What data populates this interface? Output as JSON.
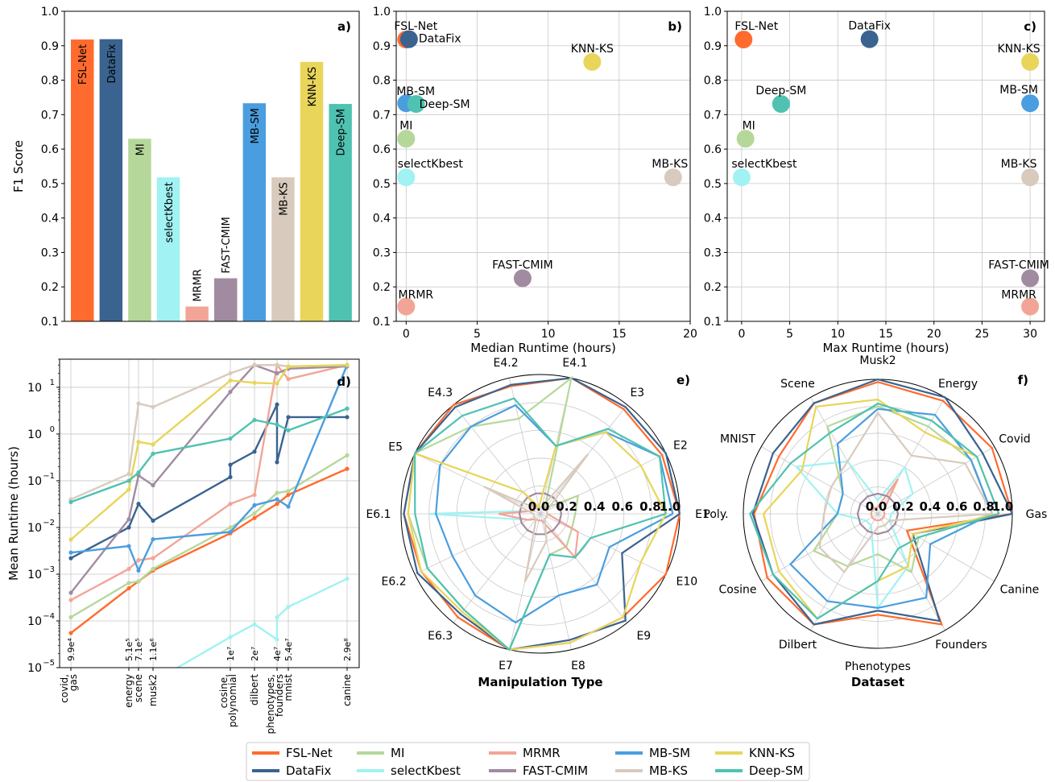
{
  "methods": [
    "FSL-Net",
    "DataFix",
    "MI",
    "selectKbest",
    "MRMR",
    "FAST-CMIM",
    "MB-SM",
    "MB-KS",
    "KNN-KS",
    "Deep-SM"
  ],
  "colors": {
    "FSL-Net": "#ff6b2e",
    "DataFix": "#3a6390",
    "MI": "#b5d89a",
    "selectKbest": "#a1f2f2",
    "MRMR": "#f2a596",
    "FAST-CMIM": "#a18ba0",
    "MB-SM": "#4a9ee0",
    "MB-KS": "#d8cbbd",
    "KNN-KS": "#e8d55a",
    "Deep-SM": "#4fc2b2"
  },
  "panels": {
    "a": "a)",
    "b": "b)",
    "c": "c)",
    "d": "d)",
    "e": "e)",
    "f": "f)"
  },
  "chart_data": [
    {
      "id": "a",
      "type": "bar",
      "categories": [
        "FSL-Net",
        "DataFix",
        "MI",
        "selectKbest",
        "MRMR",
        "FAST-CMIM",
        "MB-SM",
        "MB-KS",
        "KNN-KS",
        "Deep-SM"
      ],
      "values": [
        0.918,
        0.919,
        0.63,
        0.518,
        0.143,
        0.225,
        0.733,
        0.518,
        0.853,
        0.731
      ],
      "ylabel": "F1 Score",
      "ylim": [
        0.1,
        1.0
      ],
      "yticks": [
        "0.1",
        "0.2",
        "0.3",
        "0.4",
        "0.5",
        "0.6",
        "0.7",
        "0.8",
        "0.9",
        "1.0"
      ]
    },
    {
      "id": "b",
      "type": "scatter",
      "xlabel": "Median Runtime (hours)",
      "xlim": [
        -0.7,
        20
      ],
      "ylim": [
        0.1,
        1.0
      ],
      "xticks": [
        "0",
        "5",
        "10",
        "15",
        "20"
      ],
      "yticks": [
        "0.1",
        "0.2",
        "0.3",
        "0.4",
        "0.5",
        "0.6",
        "0.7",
        "0.8",
        "0.9",
        "1.0"
      ],
      "points": [
        {
          "name": "FSL-Net",
          "x": 0.0,
          "y": 0.918
        },
        {
          "name": "DataFix",
          "x": 0.2,
          "y": 0.919
        },
        {
          "name": "MI",
          "x": 0.0,
          "y": 0.63
        },
        {
          "name": "selectKbest",
          "x": 0.0,
          "y": 0.518
        },
        {
          "name": "MRMR",
          "x": 0.0,
          "y": 0.143
        },
        {
          "name": "FAST-CMIM",
          "x": 8.2,
          "y": 0.225
        },
        {
          "name": "MB-SM",
          "x": 0.0,
          "y": 0.733
        },
        {
          "name": "MB-KS",
          "x": 18.8,
          "y": 0.518
        },
        {
          "name": "KNN-KS",
          "x": 13.1,
          "y": 0.853
        },
        {
          "name": "Deep-SM",
          "x": 0.7,
          "y": 0.731
        }
      ]
    },
    {
      "id": "c",
      "type": "scatter",
      "xlabel": "Max Runtime (hours)",
      "xlim": [
        -1.5,
        31.5
      ],
      "ylim": [
        0.1,
        1.0
      ],
      "xticks": [
        "0",
        "5",
        "10",
        "15",
        "20",
        "25",
        "30"
      ],
      "yticks": [
        "0.1",
        "0.2",
        "0.3",
        "0.4",
        "0.5",
        "0.6",
        "0.7",
        "0.8",
        "0.9",
        "1.0"
      ],
      "points": [
        {
          "name": "FSL-Net",
          "x": 0.2,
          "y": 0.918
        },
        {
          "name": "DataFix",
          "x": 13.3,
          "y": 0.919
        },
        {
          "name": "MI",
          "x": 0.4,
          "y": 0.63
        },
        {
          "name": "selectKbest",
          "x": 0.0,
          "y": 0.518
        },
        {
          "name": "MRMR",
          "x": 30,
          "y": 0.143
        },
        {
          "name": "FAST-CMIM",
          "x": 30,
          "y": 0.225
        },
        {
          "name": "MB-SM",
          "x": 30,
          "y": 0.733
        },
        {
          "name": "MB-KS",
          "x": 30,
          "y": 0.518
        },
        {
          "name": "KNN-KS",
          "x": 30,
          "y": 0.853
        },
        {
          "name": "Deep-SM",
          "x": 4.1,
          "y": 0.731
        }
      ]
    },
    {
      "id": "d",
      "type": "line",
      "scale": "log",
      "ylabel": "Mean Runtime (hours)",
      "ylim": [
        1e-05,
        40
      ],
      "yticks": [
        {
          "v": 1e-05,
          "label": "10",
          "exp": "−5"
        },
        {
          "v": 0.0001,
          "label": "10",
          "exp": "−4"
        },
        {
          "v": 0.001,
          "label": "10",
          "exp": "−3"
        },
        {
          "v": 0.01,
          "label": "10",
          "exp": "−2"
        },
        {
          "v": 0.1,
          "label": "10",
          "exp": "−1"
        },
        {
          "v": 1,
          "label": "10",
          "exp": "0"
        },
        {
          "v": 10,
          "label": "10",
          "exp": "1"
        }
      ],
      "datasets": [
        {
          "name": "covid,\ngas",
          "size": "9.9e⁴"
        },
        {
          "name": "energy",
          "size": "5.1e⁵"
        },
        {
          "name": "scene",
          "size": "7.1e⁵"
        },
        {
          "name": "musk2",
          "size": "1.1e⁶"
        },
        {
          "name": "cosine,\npolynomial",
          "size": "1e⁷"
        },
        {
          "name": "dilbert",
          "size": "2e⁷"
        },
        {
          "name": "phenotypes,\nfounders",
          "size": "4e⁷"
        },
        {
          "name": "mnist",
          "size": "5.4e⁷"
        },
        {
          "name": "canine",
          "size": "2.9e⁸"
        }
      ],
      "series": [
        {
          "name": "FSL-Net",
          "points": [
            [
              1,
              5.5e-05
            ],
            [
              2,
              0.0005
            ],
            [
              3,
              0.0007
            ],
            [
              4,
              0.0012
            ],
            [
              5,
              0.0075
            ],
            [
              6,
              0.016
            ],
            [
              7,
              0.032
            ],
            [
              8,
              0.05
            ],
            [
              9,
              0.18
            ]
          ]
        },
        {
          "name": "DataFix",
          "points": [
            [
              1,
              0.0022
            ],
            [
              2,
              0.01
            ],
            [
              3,
              0.032
            ],
            [
              4,
              0.014
            ],
            [
              5,
              0.12
            ],
            [
              5,
              0.22
            ],
            [
              6,
              0.42
            ],
            [
              7,
              4.3
            ],
            [
              7,
              0.25
            ],
            [
              8,
              2.3
            ],
            [
              9,
              2.3
            ]
          ]
        },
        {
          "name": "MI",
          "points": [
            [
              1,
              0.00012
            ],
            [
              2,
              0.00065
            ],
            [
              3,
              0.0007
            ],
            [
              4,
              0.0013
            ],
            [
              5,
              0.01
            ],
            [
              6,
              0.02
            ],
            [
              7,
              0.055
            ],
            [
              8,
              0.06
            ],
            [
              9,
              0.35
            ]
          ]
        },
        {
          "name": "selectKbest",
          "points": [
            [
              4,
              5e-06
            ],
            [
              5,
              4.5e-05
            ],
            [
              6,
              8.5e-05
            ],
            [
              7,
              4e-05
            ],
            [
              7,
              0.00012
            ],
            [
              8,
              0.0002
            ],
            [
              9,
              0.0008
            ]
          ]
        },
        {
          "name": "MRMR",
          "points": [
            [
              1,
              0.00028
            ],
            [
              2,
              0.0013
            ],
            [
              3,
              0.002
            ],
            [
              4,
              0.0022
            ],
            [
              5,
              0.032
            ],
            [
              6,
              0.05
            ],
            [
              7,
              30
            ],
            [
              8,
              15
            ],
            [
              9,
              30
            ]
          ]
        },
        {
          "name": "FAST-CMIM",
          "points": [
            [
              1,
              0.0004
            ],
            [
              2,
              0.015
            ],
            [
              3,
              0.13
            ],
            [
              4,
              0.08
            ],
            [
              5,
              8
            ],
            [
              6,
              30
            ],
            [
              7,
              20
            ],
            [
              8,
              25
            ],
            [
              9,
              28
            ]
          ]
        },
        {
          "name": "MB-SM",
          "points": [
            [
              1,
              0.0029
            ],
            [
              2,
              0.004
            ],
            [
              3,
              0.0012
            ],
            [
              4,
              0.0056
            ],
            [
              5,
              0.008
            ],
            [
              6,
              0.03
            ],
            [
              7,
              0.04
            ],
            [
              8,
              0.028
            ],
            [
              9,
              30
            ]
          ]
        },
        {
          "name": "MB-KS",
          "points": [
            [
              1,
              0.04
            ],
            [
              2,
              0.14
            ],
            [
              3,
              4.5
            ],
            [
              4,
              3.8
            ],
            [
              5,
              20
            ],
            [
              6,
              30
            ],
            [
              7,
              30
            ],
            [
              8,
              28
            ],
            [
              9,
              30
            ]
          ]
        },
        {
          "name": "KNN-KS",
          "points": [
            [
              1,
              0.0055
            ],
            [
              2,
              0.065
            ],
            [
              3,
              0.68
            ],
            [
              4,
              0.6
            ],
            [
              5,
              14
            ],
            [
              6,
              12.5
            ],
            [
              7,
              12
            ],
            [
              8,
              28
            ],
            [
              9,
              30
            ]
          ]
        },
        {
          "name": "Deep-SM",
          "points": [
            [
              1,
              0.035
            ],
            [
              2,
              0.1
            ],
            [
              3,
              0.15
            ],
            [
              4,
              0.38
            ],
            [
              5,
              0.8
            ],
            [
              6,
              2
            ],
            [
              7,
              1.6
            ],
            [
              8,
              1.2
            ],
            [
              9,
              3.5
            ]
          ]
        }
      ]
    },
    {
      "id": "e",
      "type": "radar",
      "xlabel": "Manipulation Type",
      "axes": [
        "E1",
        "E2",
        "E3",
        "E4.1",
        "E4.2",
        "E4.3",
        "E5",
        "E6.1",
        "E6.2",
        "E6.3",
        "E7",
        "E8",
        "E9",
        "E10"
      ],
      "rlabels": [
        "0.0",
        "0.2",
        "0.4",
        "0.6",
        "0.8",
        "1.0"
      ],
      "series": [
        {
          "name": "FSL-Net",
          "values": [
            1.0,
            0.97,
            0.96,
            1.0,
            0.94,
            1.0,
            1.0,
            0.98,
            0.95,
            0.95,
            1.0,
            0.95,
            0.95,
            1.0
          ]
        },
        {
          "name": "DataFix",
          "values": [
            1.0,
            1.0,
            0.98,
            1.0,
            0.95,
            0.98,
            1.0,
            0.98,
            0.98,
            0.92,
            1.0,
            0.93,
            0.98,
            0.65
          ]
        },
        {
          "name": "MI",
          "values": [
            0.25,
            0.3,
            0.05,
            1.0,
            0.7,
            0.8,
            1.0,
            0.95,
            0.9,
            0.88,
            1.0,
            0.3,
            0.3,
            0.25
          ]
        },
        {
          "name": "selectKbest",
          "values": [
            0.05,
            0.05,
            0.05,
            0.05,
            0.05,
            0.1,
            0.05,
            0.8,
            0.1,
            0.05,
            0.05,
            0.05,
            0.05,
            0.05
          ]
        },
        {
          "name": "MRMR",
          "values": [
            0.05,
            0.05,
            0.05,
            0.05,
            0.05,
            0.1,
            0.05,
            0.3,
            0.1,
            0.05,
            0.05,
            0.05,
            0.4,
            0.3
          ]
        },
        {
          "name": "FAST-CMIM",
          "values": [
            0.15,
            0.15,
            0.15,
            0.15,
            0.15,
            0.15,
            0.15,
            0.15,
            0.15,
            0.15,
            0.15,
            0.15,
            0.15,
            0.15
          ]
        },
        {
          "name": "MB-SM",
          "values": [
            0.95,
            0.95,
            0.75,
            0.5,
            0.8,
            0.8,
            0.8,
            0.75,
            0.7,
            0.75,
            0.8,
            0.6,
            0.65,
            0.55
          ]
        },
        {
          "name": "MB-KS",
          "values": [
            0.05,
            0.05,
            0.55,
            0.05,
            0.05,
            0.05,
            0.45,
            0.05,
            0.05,
            0.05,
            0.5,
            0.2,
            0.05,
            0.05
          ]
        },
        {
          "name": "KNN-KS",
          "values": [
            0.9,
            0.8,
            0.75,
            0.5,
            0.05,
            0.2,
            1.0,
            0.95,
            0.95,
            0.9,
            1.0,
            0.95,
            0.95,
            0.8
          ]
        },
        {
          "name": "Deep-SM",
          "values": [
            0.9,
            0.95,
            0.78,
            0.5,
            0.85,
            0.9,
            1.0,
            0.9,
            0.9,
            0.88,
            1.0,
            0.3,
            0.4,
            0.4
          ]
        }
      ]
    },
    {
      "id": "f",
      "type": "radar",
      "xlabel": "Dataset",
      "axes": [
        "Gas",
        "Covid",
        "Energy",
        "Musk2",
        "Scene",
        "MNIST",
        "Poly.",
        "Cosine",
        "Dilbert",
        "Phenotypes",
        "Founders",
        "Canine"
      ],
      "rlabels": [
        "0.0",
        "0.2",
        "0.4",
        "0.6",
        "0.8",
        "1.0"
      ],
      "series": [
        {
          "name": "FSL-Net",
          "values": [
            1.0,
            0.98,
            0.97,
            0.98,
            0.95,
            0.85,
            0.92,
            0.95,
            0.95,
            0.75,
            0.95,
            0.25
          ]
        },
        {
          "name": "DataFix",
          "values": [
            1.0,
            0.9,
            1.0,
            1.0,
            0.95,
            0.9,
            0.93,
            0.9,
            0.95,
            0.72,
            0.92,
            0.3
          ]
        },
        {
          "name": "MI",
          "values": [
            0.85,
            0.8,
            0.75,
            0.8,
            0.75,
            0.3,
            0.3,
            0.55,
            0.45,
            0.3,
            0.5,
            0.35
          ]
        },
        {
          "name": "selectKbest",
          "values": [
            0.1,
            0.3,
            0.4,
            0.1,
            0.45,
            0.7,
            0.3,
            0.1,
            0.1,
            0.7,
            0.45,
            0.1
          ]
        },
        {
          "name": "MRMR",
          "values": [
            0.05,
            0.05,
            0.3,
            0.05,
            0.05,
            0.05,
            0.05,
            0.05,
            0.05,
            0.05,
            0.05,
            0.05
          ]
        },
        {
          "name": "FAST-CMIM",
          "values": [
            0.15,
            0.15,
            0.15,
            0.15,
            0.15,
            0.15,
            0.15,
            0.15,
            0.15,
            0.15,
            0.15,
            0.15
          ]
        },
        {
          "name": "MB-SM",
          "values": [
            0.85,
            0.8,
            0.85,
            0.78,
            0.6,
            0.3,
            0.3,
            0.75,
            0.75,
            0.7,
            0.72,
            0.45
          ]
        },
        {
          "name": "MB-KS",
          "values": [
            0.85,
            0.75,
            0.5,
            0.75,
            0.45,
            0.4,
            0.4,
            0.5,
            0.5,
            0.1,
            0.1,
            0.1
          ]
        },
        {
          "name": "KNN-KS",
          "values": [
            0.9,
            0.85,
            0.7,
            0.85,
            0.92,
            0.65,
            0.85,
            0.85,
            0.9,
            0.5,
            0.45,
            0.3
          ]
        },
        {
          "name": "Deep-SM",
          "values": [
            0.9,
            0.85,
            0.8,
            0.82,
            0.7,
            0.75,
            0.95,
            0.9,
            0.9,
            0.5,
            0.3,
            0.35
          ]
        }
      ]
    }
  ],
  "legend": [
    "FSL-Net",
    "DataFix",
    "MI",
    "selectKbest",
    "MRMR",
    "FAST-CMIM",
    "MB-SM",
    "MB-KS",
    "KNN-KS",
    "Deep-SM"
  ]
}
